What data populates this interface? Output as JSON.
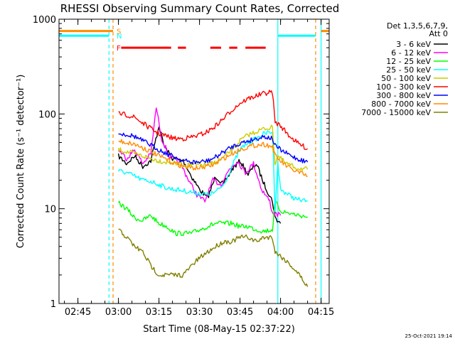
{
  "chart_data": {
    "type": "line",
    "title": "RHESSI Observing Summary Count Rates, Corrected",
    "xlabel": "Start Time (08-May-15 02:37:22)",
    "ylabel": "Corrected Count Rate (s⁻¹ detector⁻¹)",
    "yscale": "log",
    "xlim_min": [
      158,
      258
    ],
    "ylim": [
      1,
      1000
    ],
    "x_ticks": [
      {
        "value": 165,
        "label": "02:45"
      },
      {
        "value": 180,
        "label": "03:00"
      },
      {
        "value": 195,
        "label": "03:15"
      },
      {
        "value": 210,
        "label": "03:30"
      },
      {
        "value": 225,
        "label": "03:45"
      },
      {
        "value": 240,
        "label": "04:00"
      },
      {
        "value": 255,
        "label": "04:15"
      }
    ],
    "y_ticks": [
      {
        "value": 1,
        "label": "1"
      },
      {
        "value": 10,
        "label": "10"
      },
      {
        "value": 100,
        "label": "100"
      },
      {
        "value": 1000,
        "label": "1000"
      }
    ],
    "legend_header": [
      "Det 1,3,5,6,7,9,",
      "Att 0"
    ],
    "legend_position": "right",
    "footer_date": "25-Oct-2021 19:14",
    "series": [
      {
        "name": "3 - 6 keV",
        "color": "#000000",
        "points": [
          [
            180,
            36
          ],
          [
            183,
            30
          ],
          [
            186,
            36
          ],
          [
            189,
            28
          ],
          [
            192,
            32
          ],
          [
            195,
            75
          ],
          [
            197,
            45
          ],
          [
            200,
            34
          ],
          [
            204,
            32
          ],
          [
            207,
            22
          ],
          [
            210,
            16
          ],
          [
            213,
            13
          ],
          [
            216,
            22
          ],
          [
            219,
            18
          ],
          [
            222,
            26
          ],
          [
            225,
            32
          ],
          [
            228,
            23
          ],
          [
            231,
            30
          ],
          [
            234,
            18
          ],
          [
            237,
            12
          ],
          [
            238,
            8
          ],
          [
            240,
            7
          ]
        ]
      },
      {
        "name": "6 - 12 keV",
        "color": "#ff00ff",
        "points": [
          [
            180,
            42
          ],
          [
            183,
            34
          ],
          [
            186,
            42
          ],
          [
            189,
            30
          ],
          [
            192,
            38
          ],
          [
            194,
            118
          ],
          [
            196,
            55
          ],
          [
            199,
            35
          ],
          [
            203,
            30
          ],
          [
            206,
            20
          ],
          [
            209,
            14
          ],
          [
            212,
            12
          ],
          [
            215,
            20
          ],
          [
            218,
            18
          ],
          [
            221,
            26
          ],
          [
            224,
            32
          ],
          [
            227,
            24
          ],
          [
            230,
            30
          ],
          [
            233,
            16
          ],
          [
            236,
            12
          ],
          [
            237,
            9
          ],
          [
            240,
            8.5
          ]
        ]
      },
      {
        "name": "12 - 25 keV",
        "color": "#00ff00",
        "points": [
          [
            180,
            11.5
          ],
          [
            183,
            10
          ],
          [
            186,
            8
          ],
          [
            189,
            7.5
          ],
          [
            192,
            8.5
          ],
          [
            195,
            7
          ],
          [
            198,
            6.5
          ],
          [
            201,
            5.5
          ],
          [
            204,
            5.5
          ],
          [
            207,
            5.5
          ],
          [
            210,
            6
          ],
          [
            213,
            6.5
          ],
          [
            216,
            7
          ],
          [
            219,
            7
          ],
          [
            222,
            7
          ],
          [
            225,
            6.5
          ],
          [
            228,
            6.5
          ],
          [
            231,
            6
          ],
          [
            234,
            5.8
          ],
          [
            237,
            6
          ],
          [
            238,
            12
          ],
          [
            240,
            9.5
          ],
          [
            243,
            9
          ],
          [
            247,
            8.5
          ],
          [
            250,
            8.2
          ]
        ]
      },
      {
        "name": "25 - 50 keV",
        "color": "#00ffff",
        "points": [
          [
            180,
            25
          ],
          [
            183,
            24
          ],
          [
            186,
            22
          ],
          [
            189,
            20
          ],
          [
            192,
            19.5
          ],
          [
            195,
            18
          ],
          [
            198,
            16.5
          ],
          [
            201,
            16
          ],
          [
            204,
            15.5
          ],
          [
            207,
            15
          ],
          [
            210,
            14.5
          ],
          [
            213,
            14
          ],
          [
            216,
            15
          ],
          [
            219,
            18
          ],
          [
            222,
            28
          ],
          [
            225,
            42
          ],
          [
            228,
            50
          ],
          [
            231,
            55
          ],
          [
            234,
            62
          ],
          [
            237,
            65
          ],
          [
            238,
            10
          ],
          [
            239,
            30
          ],
          [
            240,
            16
          ],
          [
            243,
            14
          ],
          [
            246,
            12.5
          ],
          [
            250,
            12
          ]
        ]
      },
      {
        "name": "50 - 100 keV",
        "color": "#cccc00",
        "points": [
          [
            180,
            42
          ],
          [
            183,
            40
          ],
          [
            186,
            38
          ],
          [
            189,
            36
          ],
          [
            192,
            34
          ],
          [
            195,
            32
          ],
          [
            198,
            31
          ],
          [
            201,
            30
          ],
          [
            204,
            29
          ],
          [
            207,
            29
          ],
          [
            210,
            29
          ],
          [
            213,
            29
          ],
          [
            216,
            31
          ],
          [
            219,
            35
          ],
          [
            222,
            42
          ],
          [
            225,
            52
          ],
          [
            228,
            60
          ],
          [
            231,
            65
          ],
          [
            234,
            70
          ],
          [
            237,
            72
          ],
          [
            238,
            30
          ],
          [
            239,
            36
          ],
          [
            242,
            30
          ],
          [
            246,
            27
          ],
          [
            250,
            26
          ]
        ]
      },
      {
        "name": "100 - 300 keV",
        "color": "#ff0000",
        "points": [
          [
            180,
            100
          ],
          [
            183,
            98
          ],
          [
            186,
            92
          ],
          [
            189,
            80
          ],
          [
            192,
            70
          ],
          [
            195,
            62
          ],
          [
            198,
            58
          ],
          [
            201,
            55
          ],
          [
            204,
            55
          ],
          [
            207,
            57
          ],
          [
            210,
            60
          ],
          [
            213,
            65
          ],
          [
            216,
            75
          ],
          [
            219,
            90
          ],
          [
            222,
            110
          ],
          [
            225,
            130
          ],
          [
            228,
            145
          ],
          [
            231,
            155
          ],
          [
            234,
            165
          ],
          [
            237,
            170
          ],
          [
            238,
            82
          ],
          [
            240,
            75
          ],
          [
            243,
            60
          ],
          [
            246,
            50
          ],
          [
            250,
            43
          ]
        ]
      },
      {
        "name": "300 - 800 keV",
        "color": "#0000ff",
        "points": [
          [
            180,
            62
          ],
          [
            183,
            61
          ],
          [
            186,
            58
          ],
          [
            189,
            52
          ],
          [
            192,
            47
          ],
          [
            195,
            42
          ],
          [
            198,
            38
          ],
          [
            201,
            35
          ],
          [
            204,
            32
          ],
          [
            207,
            31
          ],
          [
            210,
            31
          ],
          [
            213,
            32
          ],
          [
            216,
            35
          ],
          [
            219,
            40
          ],
          [
            222,
            45
          ],
          [
            225,
            49
          ],
          [
            228,
            52
          ],
          [
            231,
            55
          ],
          [
            234,
            58
          ],
          [
            237,
            55
          ],
          [
            238,
            46
          ],
          [
            241,
            40
          ],
          [
            244,
            36
          ],
          [
            247,
            33
          ],
          [
            250,
            31
          ]
        ]
      },
      {
        "name": "800 - 7000 keV",
        "color": "#ff8c00",
        "points": [
          [
            180,
            52
          ],
          [
            183,
            50
          ],
          [
            186,
            48
          ],
          [
            189,
            44
          ],
          [
            192,
            40
          ],
          [
            195,
            36
          ],
          [
            198,
            33
          ],
          [
            201,
            30
          ],
          [
            204,
            28
          ],
          [
            207,
            27
          ],
          [
            210,
            27
          ],
          [
            213,
            28
          ],
          [
            216,
            30
          ],
          [
            219,
            34
          ],
          [
            222,
            38
          ],
          [
            225,
            42
          ],
          [
            228,
            45
          ],
          [
            231,
            47
          ],
          [
            234,
            48
          ],
          [
            237,
            45
          ],
          [
            238,
            36
          ],
          [
            241,
            30
          ],
          [
            244,
            26
          ],
          [
            247,
            24
          ],
          [
            250,
            22
          ]
        ]
      },
      {
        "name": "7000 - 15000 keV",
        "color": "#808000",
        "points": [
          [
            180,
            6
          ],
          [
            183,
            5
          ],
          [
            186,
            4
          ],
          [
            189,
            3.5
          ],
          [
            192,
            2.5
          ],
          [
            195,
            2
          ],
          [
            198,
            2
          ],
          [
            201,
            2
          ],
          [
            204,
            2
          ],
          [
            207,
            2.5
          ],
          [
            210,
            3
          ],
          [
            213,
            3.5
          ],
          [
            216,
            4
          ],
          [
            219,
            4.5
          ],
          [
            222,
            4.5
          ],
          [
            225,
            5
          ],
          [
            228,
            5
          ],
          [
            231,
            4.5
          ],
          [
            234,
            5
          ],
          [
            237,
            5
          ],
          [
            238,
            3.5
          ],
          [
            241,
            3
          ],
          [
            244,
            2.5
          ],
          [
            247,
            2
          ],
          [
            250,
            1.5
          ]
        ]
      }
    ],
    "attenuator_bars": [
      {
        "label": "S",
        "color": "#ff8c00",
        "y_value": 750,
        "segments": [
          [
            158,
            178
          ],
          [
            255,
            258
          ]
        ]
      },
      {
        "label": "N",
        "color": "#00ffff",
        "y_value": 670,
        "segments": [
          [
            158,
            176.5
          ],
          [
            239,
            253
          ]
        ]
      },
      {
        "label": "F",
        "color": "#ff0000",
        "y_value": 500,
        "segments": [
          [
            181,
            199.5
          ],
          [
            202,
            205
          ],
          [
            214,
            218
          ],
          [
            221,
            224
          ],
          [
            227,
            234.5
          ]
        ]
      }
    ],
    "vertical_markers": [
      {
        "x": 176.5,
        "color": "#00ffff",
        "style": "dashed"
      },
      {
        "x": 178,
        "color": "#ff8c00",
        "style": "dashed"
      },
      {
        "x": 239,
        "color": "#00ffff",
        "style": "solid"
      },
      {
        "x": 253,
        "color": "#ff8c00",
        "style": "dashed"
      },
      {
        "x": 255,
        "color": "#00ffff",
        "style": "solid"
      }
    ]
  }
}
